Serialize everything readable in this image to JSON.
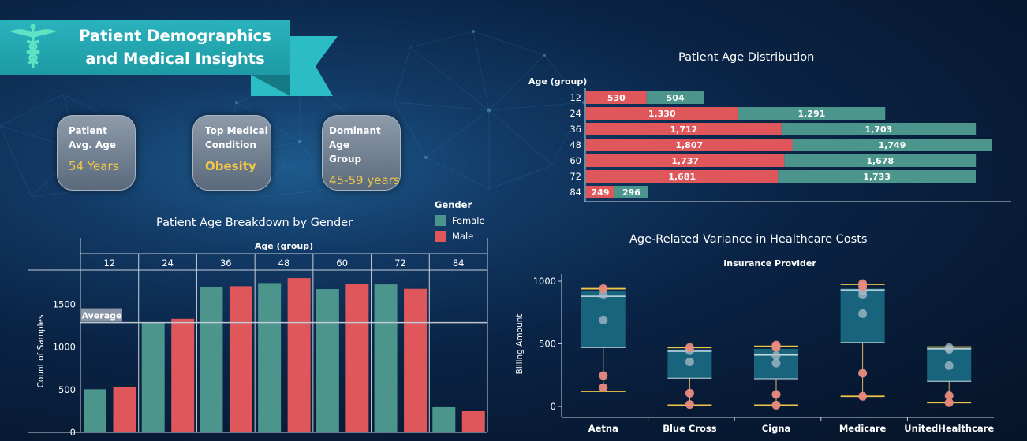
{
  "header": {
    "title_line1": "Patient Demographics",
    "title_line2": "and Medical Insights"
  },
  "kpis": [
    {
      "label_line1": "Patient",
      "label_line2": "Avg. Age",
      "value": "54 Years"
    },
    {
      "label_line1": "Top Medical",
      "label_line2": "Condition",
      "value": "Obesity"
    },
    {
      "label_line1": "Dominant Age",
      "label_line2": "Group",
      "value": "45-59 years"
    }
  ],
  "legend": {
    "title": "Gender",
    "items": [
      {
        "label": "Female",
        "color": "#4b958c"
      },
      {
        "label": "Male",
        "color": "#e0575b"
      }
    ]
  },
  "chart_data": [
    {
      "type": "bar",
      "orientation": "horizontal-stacked",
      "title": "Patient Age Distribution",
      "ylabel": "Age (group)",
      "categories": [
        "12",
        "24",
        "36",
        "48",
        "60",
        "72",
        "84"
      ],
      "series": [
        {
          "name": "Male",
          "color": "#e0575b",
          "values": [
            530,
            1330,
            1712,
            1807,
            1737,
            1681,
            249
          ],
          "labels": [
            "530",
            "1,330",
            "1,712",
            "1,807",
            "1,737",
            "1,681",
            "249"
          ]
        },
        {
          "name": "Female",
          "color": "#4b958c",
          "values": [
            504,
            1291,
            1703,
            1749,
            1678,
            1733,
            296
          ],
          "labels": [
            "504",
            "1,291",
            "1,703",
            "1,749",
            "1,678",
            "1,733",
            "296"
          ]
        }
      ]
    },
    {
      "type": "bar",
      "title": "Patient Age Breakdown by Gender",
      "xlabel": "Age (group)",
      "ylabel": "Count of Samples",
      "categories": [
        "12",
        "24",
        "36",
        "48",
        "60",
        "72",
        "84"
      ],
      "ylim": [
        0,
        1900
      ],
      "yticks": [
        0,
        500,
        1000,
        1500
      ],
      "series": [
        {
          "name": "Female",
          "color": "#4b958c",
          "values": [
            504,
            1291,
            1703,
            1749,
            1678,
            1733,
            296
          ]
        },
        {
          "name": "Male",
          "color": "#e0575b",
          "values": [
            530,
            1330,
            1712,
            1807,
            1737,
            1681,
            249
          ]
        }
      ],
      "reference_line": {
        "label": "Average",
        "value": 1286
      }
    },
    {
      "type": "scatter",
      "subtype": "box-plot",
      "title": "Age-Related Variance in Healthcare Costs",
      "xlabel": "Insurance Provider",
      "ylabel": "Billing Amount",
      "ylim": [
        -60,
        1080
      ],
      "yticks": [
        0,
        500,
        1000
      ],
      "categories": [
        "Aetna",
        "Blue Cross",
        "Cigna",
        "Medicare",
        "UnitedHealthcare"
      ],
      "boxes": [
        {
          "whisker_low": 120,
          "q1": 470,
          "median": 880,
          "q3": 920,
          "whisker_high": 940,
          "points": [
            150,
            245,
            690,
            890,
            940
          ]
        },
        {
          "whisker_low": 10,
          "q1": 225,
          "median": 440,
          "q3": 455,
          "whisker_high": 470,
          "points": [
            15,
            105,
            355,
            445,
            470
          ]
        },
        {
          "whisker_low": 10,
          "q1": 220,
          "median": 410,
          "q3": 460,
          "whisker_high": 480,
          "points": [
            10,
            95,
            345,
            405,
            470,
            490
          ]
        },
        {
          "whisker_low": 80,
          "q1": 510,
          "median": 930,
          "q3": 940,
          "whisker_high": 975,
          "points": [
            80,
            265,
            740,
            890,
            920,
            955,
            980
          ]
        },
        {
          "whisker_low": 30,
          "q1": 200,
          "median": 460,
          "q3": 470,
          "whisker_high": 475,
          "points": [
            30,
            85,
            325,
            455,
            470
          ]
        }
      ]
    }
  ]
}
